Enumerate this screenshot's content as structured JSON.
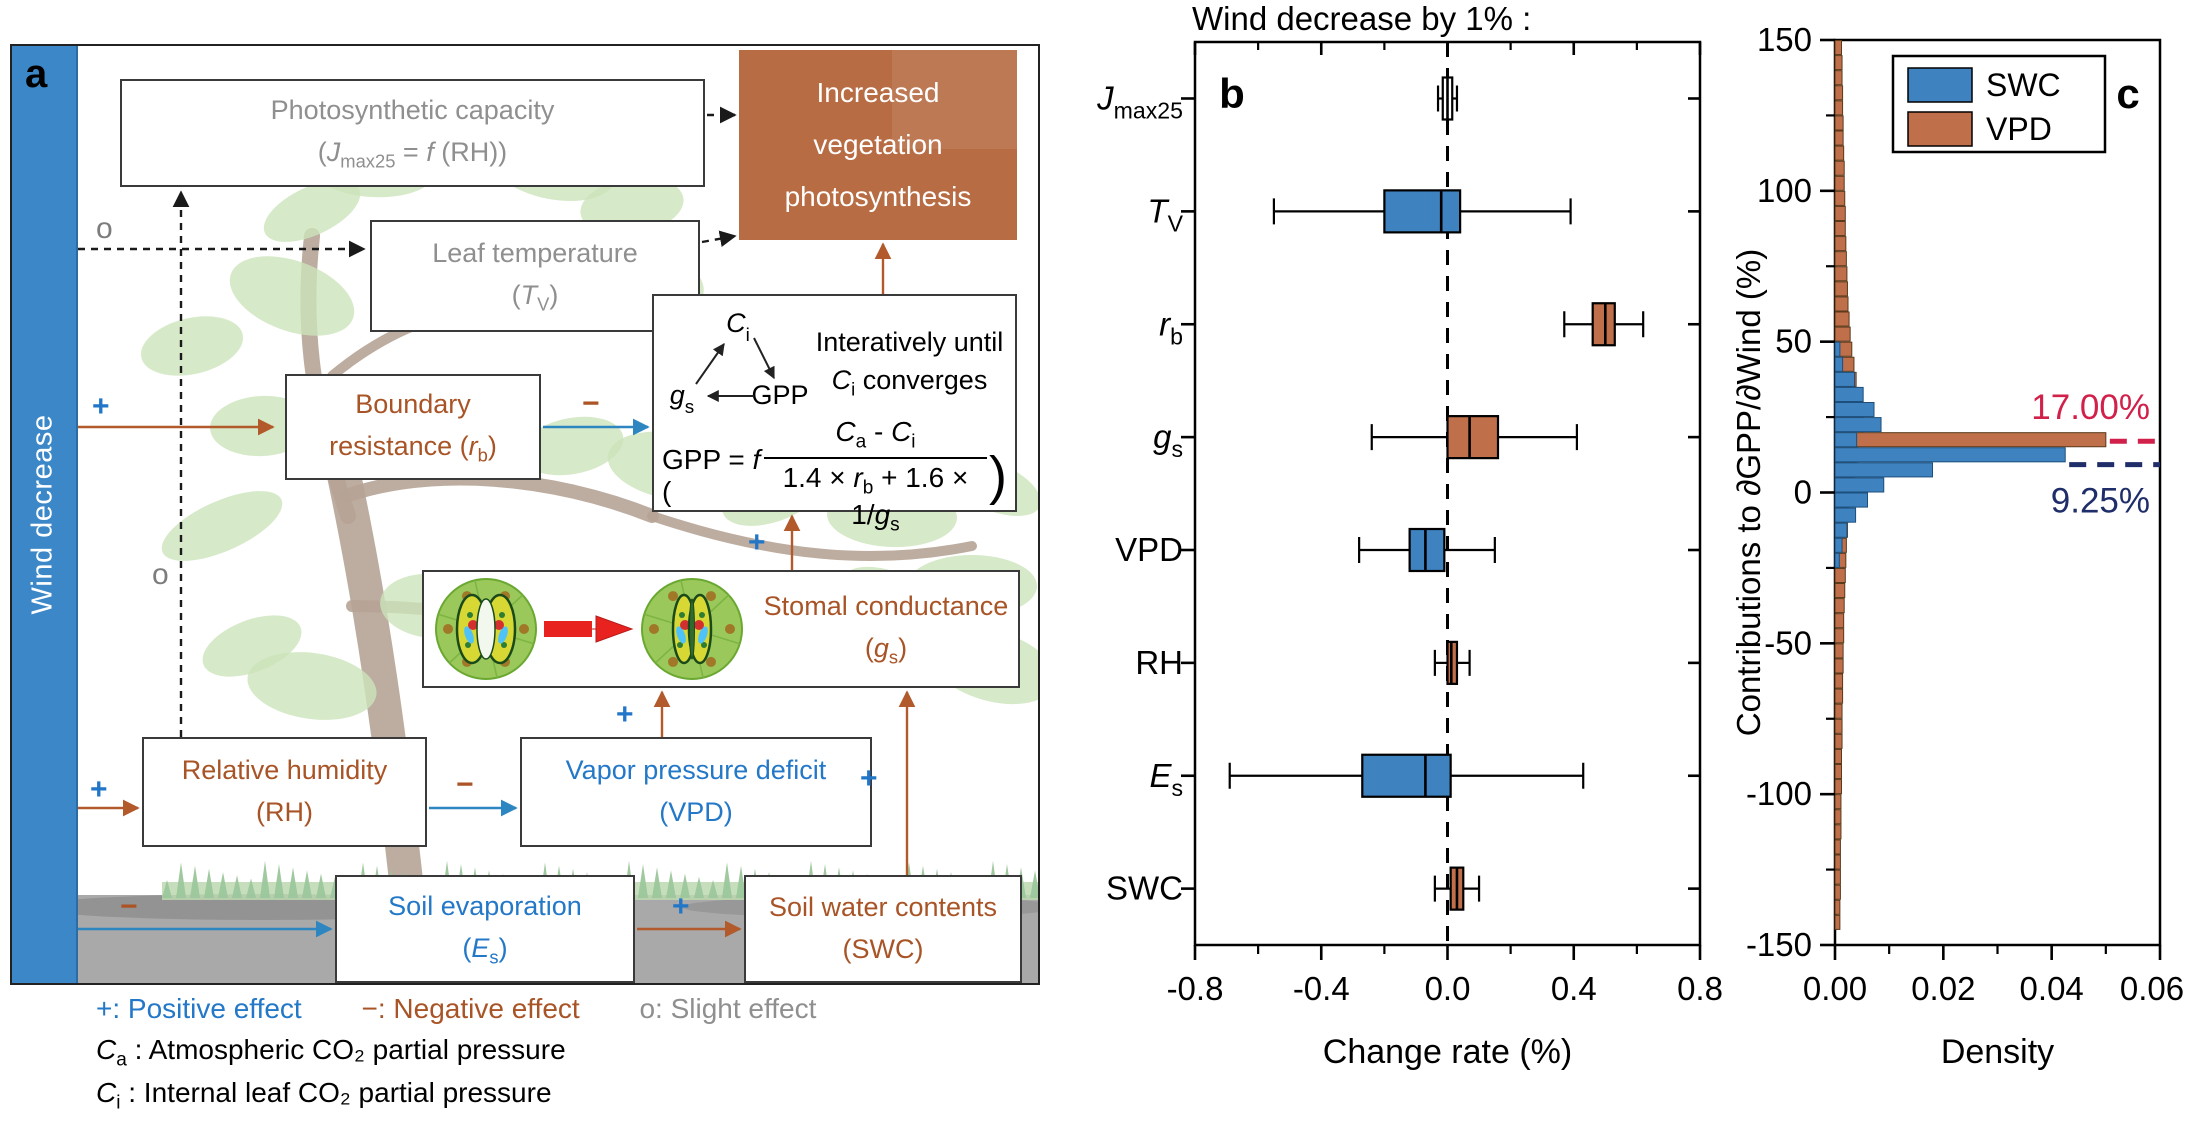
{
  "colors": {
    "blue": "#3e82c0",
    "orange": "#bf6f4a",
    "blue_strong": "#2176c8",
    "orange_text": "#ab5526",
    "crimson": "#d1204a",
    "navy": "#1f2d69",
    "gray_text": "#8f8f8f",
    "wind_bar": "#3b87c8",
    "box_fill": "#b76c44",
    "trunk": "#b2a090",
    "leaf": "#c9e2b6",
    "grass": "#9cc69b",
    "ground": "#a9a9a9"
  },
  "panel_a": {
    "label": "a",
    "wind_bar_label": "Wind decrease",
    "boxes": {
      "photo_cap": {
        "line1": "Photosynthetic capacity",
        "line2": "(*J*_{max25} = *f* (RH))"
      },
      "leaf_temp": {
        "line1": "Leaf temperature",
        "line2": "(*T*_{V})"
      },
      "boundary": {
        "line1": "Boundary",
        "line2": "resistance (*r*_{b})"
      },
      "increased": {
        "line1": "Increased",
        "line2": "vegetation",
        "line3": "photosynthesis"
      },
      "stoma": {
        "line1": "Stomal conductance",
        "line2": "(*g*_{s})"
      },
      "rh": {
        "line1": "Relative humidity",
        "line2": "(RH)"
      },
      "vpd": {
        "line1": "Vapor pressure deficit",
        "line2": "(VPD)"
      },
      "es": {
        "line1": "Soil evaporation",
        "line2": "(*E*_{s})"
      },
      "swc": {
        "line1": "Soil water contents",
        "line2": "(SWC)"
      }
    },
    "cycle": {
      "top": "*C*_{i}",
      "left": "*g*_{s}",
      "right": "GPP"
    },
    "gpp_note": {
      "line1": "Interatively until",
      "line2": "*C*_{i} converges"
    },
    "formula": {
      "lhs": "GPP = *f* (",
      "num": "*C*_{a} - *C*_{i}",
      "den": "1.4 × *r*_{b} + 1.6 × 1/*g*_{s}",
      "rhs": ")"
    },
    "signs": [
      {
        "name": "wind-boundary",
        "glyph": "+",
        "color": "blue"
      },
      {
        "name": "wind-leaftemp",
        "glyph": "o",
        "color": "gray"
      },
      {
        "name": "vdash-mid",
        "glyph": "o",
        "color": "gray"
      },
      {
        "name": "wind-rh",
        "glyph": "+",
        "color": "blue"
      },
      {
        "name": "wind-es",
        "glyph": "−",
        "color": "orange"
      },
      {
        "name": "rh-vpd",
        "glyph": "−",
        "color": "orange"
      },
      {
        "name": "es-swc",
        "glyph": "+",
        "color": "blue"
      },
      {
        "name": "vpd-stoma",
        "glyph": "+",
        "color": "blue"
      },
      {
        "name": "swc-stoma",
        "glyph": "+",
        "color": "blue"
      },
      {
        "name": "stoma-gpp",
        "glyph": "+",
        "color": "blue"
      },
      {
        "name": "boundary-gpp",
        "glyph": "−",
        "color": "orange"
      }
    ],
    "legend": {
      "positive": "+: Positive effect",
      "negative": "−: Negative effect",
      "slight": "o: Slight effect",
      "ca_def": "*C*_{a} : Atmospheric CO₂ partial pressure",
      "ci_def": "*C*_{i} : Internal leaf CO₂ partial pressure"
    }
  },
  "chart_data": [
    {
      "type": "box",
      "panel_label": "b",
      "title": "Wind decrease by 1% :",
      "xlabel": "Change rate (%)",
      "xlim": [
        -0.8,
        0.8
      ],
      "xticks": [
        -0.8,
        -0.4,
        0.0,
        0.4,
        0.8
      ],
      "xtick_labels": [
        "-0.8",
        "-0.4",
        "0.0",
        "0.4",
        "0.8"
      ],
      "minor_ticks": [
        -0.6,
        -0.2,
        0.2,
        0.6
      ],
      "zero_dashed_line": true,
      "categories": [
        "*J*_{max25}",
        "*T*_{V}",
        "*r*_{b}",
        "*g*_{s}",
        "VPD",
        "RH",
        "*E*_{s}",
        "SWC"
      ],
      "boxes": [
        {
          "name": "Jmax25",
          "color": "white",
          "whisker_low": -0.03,
          "q1": -0.015,
          "median": 0.0,
          "q3": 0.015,
          "whisker_high": 0.03
        },
        {
          "name": "TV",
          "color": "blue",
          "whisker_low": -0.55,
          "q1": -0.2,
          "median": -0.02,
          "q3": 0.04,
          "whisker_high": 0.39
        },
        {
          "name": "rb",
          "color": "orange",
          "whisker_low": 0.37,
          "q1": 0.46,
          "median": 0.5,
          "q3": 0.53,
          "whisker_high": 0.62
        },
        {
          "name": "gs",
          "color": "orange",
          "whisker_low": -0.24,
          "q1": 0.0,
          "median": 0.07,
          "q3": 0.16,
          "whisker_high": 0.41
        },
        {
          "name": "VPD",
          "color": "blue",
          "whisker_low": -0.28,
          "q1": -0.12,
          "median": -0.07,
          "q3": -0.01,
          "whisker_high": 0.15
        },
        {
          "name": "RH",
          "color": "orange",
          "whisker_low": -0.04,
          "q1": 0.0,
          "median": 0.012,
          "q3": 0.03,
          "whisker_high": 0.07
        },
        {
          "name": "Es",
          "color": "blue",
          "whisker_low": -0.69,
          "q1": -0.27,
          "median": -0.07,
          "q3": 0.01,
          "whisker_high": 0.43
        },
        {
          "name": "SWC",
          "color": "orange",
          "whisker_low": -0.04,
          "q1": 0.01,
          "median": 0.03,
          "q3": 0.05,
          "whisker_high": 0.1
        }
      ]
    },
    {
      "type": "bar",
      "orientation": "horizontal",
      "panel_label": "c",
      "xlabel": "Density",
      "ylabel": "Contributions to ∂GPP/∂Wind (%)",
      "xlim": [
        0,
        0.06
      ],
      "ylim": [
        -150,
        150
      ],
      "xtick_labels": [
        "0.00",
        "0.02",
        "0.04",
        "0.06"
      ],
      "xticks": [
        0,
        0.02,
        0.04,
        0.06
      ],
      "xminor": [
        0.01,
        0.03,
        0.05
      ],
      "ytick_labels": [
        "150",
        "100",
        "50",
        "0",
        "-50",
        "-100",
        "-150"
      ],
      "yticks": [
        150,
        100,
        50,
        0,
        -50,
        -100,
        -150
      ],
      "bin_height": 5,
      "legend": [
        {
          "label": "SWC",
          "color": "blue"
        },
        {
          "label": "VPD",
          "color": "orange"
        }
      ],
      "annotations": [
        {
          "label": "17.00%",
          "value": 17,
          "color": "crimson",
          "series": "VPD",
          "bar_tip": 0.05
        },
        {
          "label": "9.25%",
          "value": 9.25,
          "color": "navy",
          "series": "SWC",
          "bar_tip": 0.0425
        }
      ],
      "bins": [
        [
          145,
          0.0012,
          0
        ],
        [
          140,
          0.0013,
          0
        ],
        [
          135,
          0.0013,
          0
        ],
        [
          130,
          0.0014,
          0
        ],
        [
          125,
          0.0014,
          0
        ],
        [
          120,
          0.0015,
          0
        ],
        [
          115,
          0.0015,
          0
        ],
        [
          110,
          0.0016,
          0
        ],
        [
          105,
          0.0017,
          0
        ],
        [
          100,
          0.0017,
          0
        ],
        [
          95,
          0.0018,
          0
        ],
        [
          90,
          0.0019,
          0
        ],
        [
          85,
          0.0019,
          0
        ],
        [
          80,
          0.002,
          0
        ],
        [
          75,
          0.0021,
          0
        ],
        [
          70,
          0.0022,
          0
        ],
        [
          65,
          0.0023,
          0
        ],
        [
          60,
          0.0024,
          0
        ],
        [
          55,
          0.0026,
          0
        ],
        [
          50,
          0.0028,
          0
        ],
        [
          45,
          0.0031,
          0.0009
        ],
        [
          40,
          0.0035,
          0.0014
        ],
        [
          35,
          0.0039,
          0.0036
        ],
        [
          30,
          0.0044,
          0.0052
        ],
        [
          25,
          0.0049,
          0.0072
        ],
        [
          20,
          0.0053,
          0.0085
        ],
        [
          15,
          0.05,
          0.004
        ],
        [
          10,
          0.0042,
          0.0425
        ],
        [
          5,
          0.0036,
          0.018
        ],
        [
          0,
          0.0031,
          0.009
        ],
        [
          -5,
          0.0028,
          0.006
        ],
        [
          -10,
          0.0025,
          0.0038
        ],
        [
          -15,
          0.0023,
          0.0022
        ],
        [
          -20,
          0.0021,
          0.0013
        ],
        [
          -25,
          0.002,
          0.0008
        ],
        [
          -30,
          0.0019,
          0
        ],
        [
          -35,
          0.0018,
          0
        ],
        [
          -40,
          0.0017,
          0
        ],
        [
          -45,
          0.0016,
          0
        ],
        [
          -50,
          0.0016,
          0
        ],
        [
          -55,
          0.0015,
          0
        ],
        [
          -60,
          0.0015,
          0
        ],
        [
          -65,
          0.0014,
          0
        ],
        [
          -70,
          0.0014,
          0
        ],
        [
          -75,
          0.0013,
          0
        ],
        [
          -80,
          0.0013,
          0
        ],
        [
          -85,
          0.0013,
          0
        ],
        [
          -90,
          0.0012,
          0
        ],
        [
          -95,
          0.0012,
          0
        ],
        [
          -100,
          0.0012,
          0
        ],
        [
          -105,
          0.0011,
          0
        ],
        [
          -110,
          0.0011,
          0
        ],
        [
          -115,
          0.0011,
          0
        ],
        [
          -120,
          0.001,
          0
        ],
        [
          -125,
          0.001,
          0
        ],
        [
          -130,
          0.001,
          0
        ],
        [
          -135,
          0.001,
          0
        ],
        [
          -140,
          0.0009,
          0
        ],
        [
          -145,
          0.0009,
          0
        ]
      ]
    }
  ]
}
